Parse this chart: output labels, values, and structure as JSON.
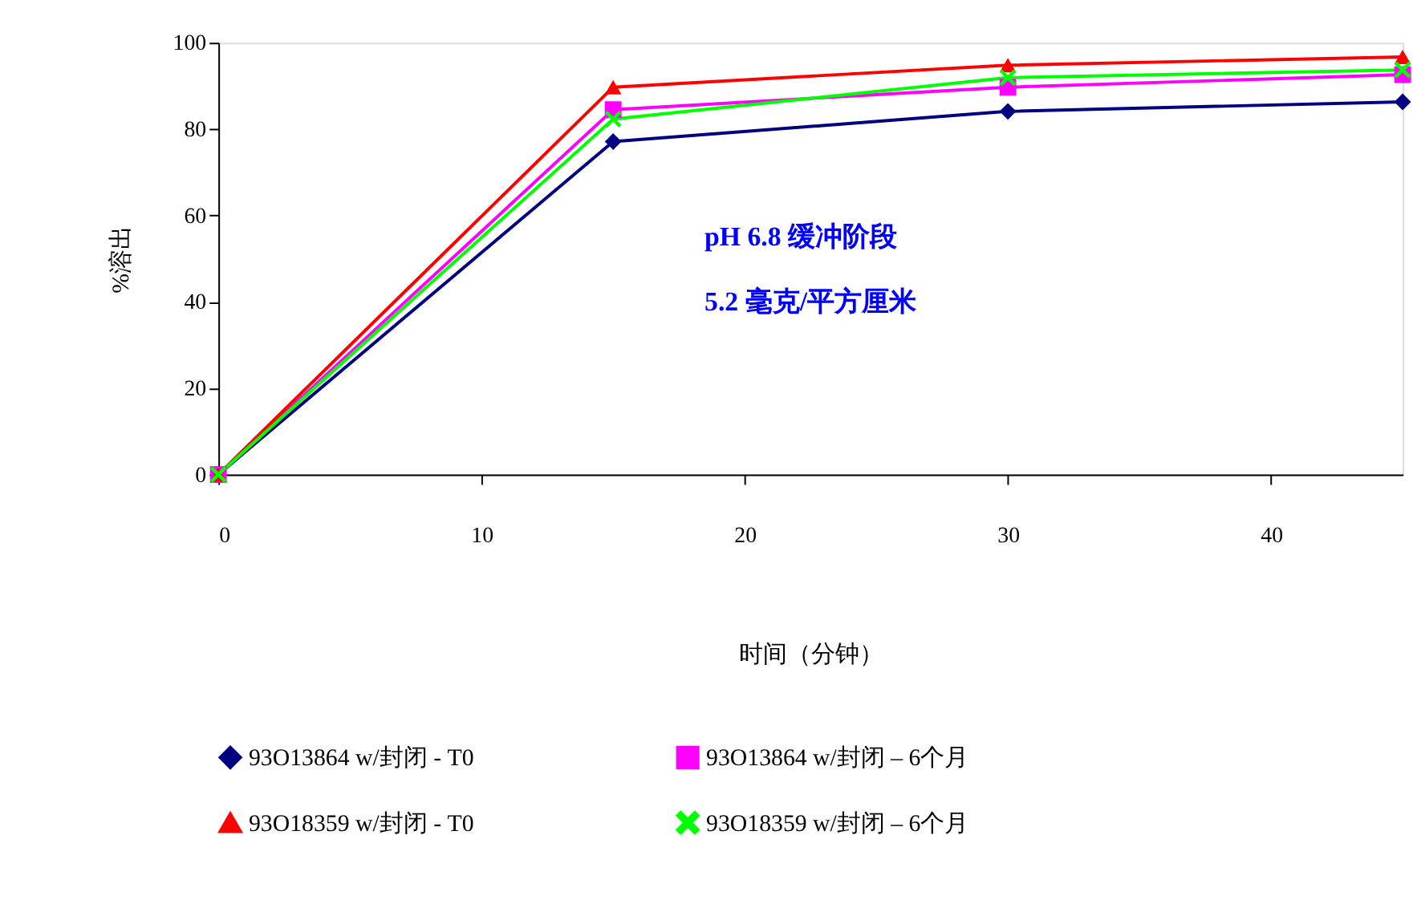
{
  "chart_data": {
    "type": "line",
    "xlabel": "时间（分钟）",
    "ylabel": "%溶出",
    "x": [
      0,
      15,
      30,
      45
    ],
    "xlim": [
      0,
      45
    ],
    "xticks": [
      0,
      10,
      20,
      30,
      40
    ],
    "ylim": [
      0,
      100
    ],
    "yticks": [
      0,
      20,
      40,
      60,
      80,
      100
    ],
    "grid": false,
    "legend": "bottom",
    "line_style": "solid",
    "annotations": [
      "pH 6.8  缓冲阶段",
      "5.2 毫克/平方厘米"
    ],
    "series": [
      {
        "name": "93O13864 w/封闭  - T0",
        "color": "#000080",
        "marker": "diamond",
        "values": [
          0,
          77.1,
          84.1,
          86.3
        ]
      },
      {
        "name": "93O13864 w/封闭  – 6个月",
        "color": "#ff00ff",
        "marker": "square",
        "values": [
          0,
          84.5,
          89.7,
          92.6
        ]
      },
      {
        "name": "93O18359 w/封闭  - T0",
        "color": "#ff0000",
        "marker": "triangle",
        "values": [
          0,
          89.7,
          94.8,
          96.7
        ]
      },
      {
        "name": "93O18359 w/封闭  – 6个月",
        "color": "#00ff00",
        "marker": "cross",
        "values": [
          0,
          82.3,
          91.9,
          93.7
        ]
      }
    ]
  }
}
